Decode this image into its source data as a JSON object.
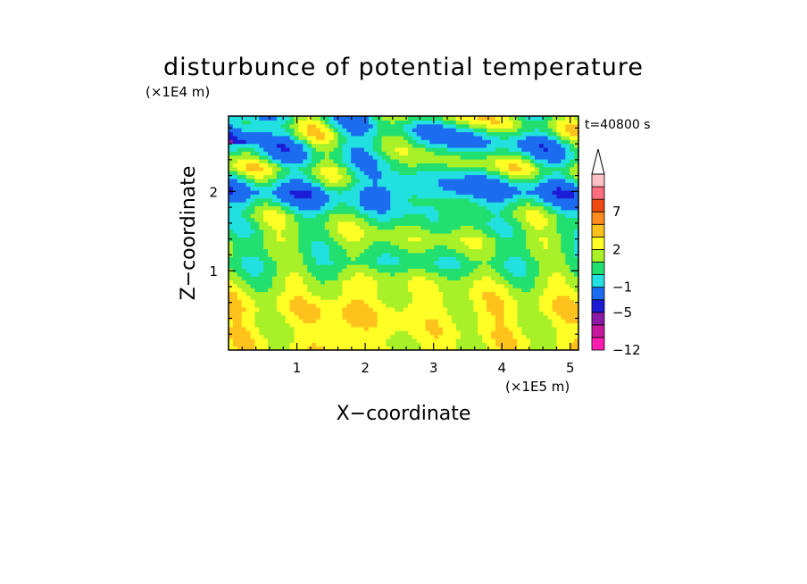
{
  "chart_data": {
    "type": "heatmap",
    "title": "disturbunce of potential temperature",
    "time_label": "t=40800 s",
    "xlabel": "X−coordinate",
    "ylabel": "Z−coordinate",
    "x_unit": "(×1E5 m)",
    "y_unit": "(×1E4 m)",
    "xlim": [
      0,
      5.12
    ],
    "ylim": [
      0,
      2.95
    ],
    "x_ticks": [
      "1",
      "2",
      "3",
      "4",
      "5"
    ],
    "y_ticks": [
      "1",
      "2"
    ],
    "colorbar": {
      "levels": [
        -12,
        -9,
        -7,
        -5,
        -3,
        -1,
        0,
        1,
        2,
        3,
        5,
        7,
        9,
        12
      ],
      "labels": [
        "−12",
        "−5",
        "−1",
        "2",
        "7"
      ],
      "colors": [
        "#ff1cb0",
        "#c5189c",
        "#8c1aa6",
        "#1c1cd6",
        "#1c6cf0",
        "#22e0e0",
        "#22e070",
        "#a8f028",
        "#ffff26",
        "#ffc21c",
        "#ff8c1c",
        "#f04a14",
        "#ff6f7f",
        "#ffc0c6"
      ],
      "extend": "max"
    },
    "field": "potential temperature disturbance",
    "pattern_rows": [
      {
        "z": 0.2,
        "value": 2.2
      },
      {
        "z": 0.5,
        "value": 2.5
      },
      {
        "z": 0.9,
        "value": 1.5
      },
      {
        "z": 1.1,
        "value": 0.3
      },
      {
        "z": 1.4,
        "value": 1.4
      },
      {
        "z": 1.7,
        "value": 0.6
      },
      {
        "z": 2.0,
        "value": -1.5
      },
      {
        "z": 2.3,
        "value": 1.0
      },
      {
        "z": 2.6,
        "value": -0.5
      },
      {
        "z": 2.9,
        "value": 0.8
      }
    ]
  }
}
